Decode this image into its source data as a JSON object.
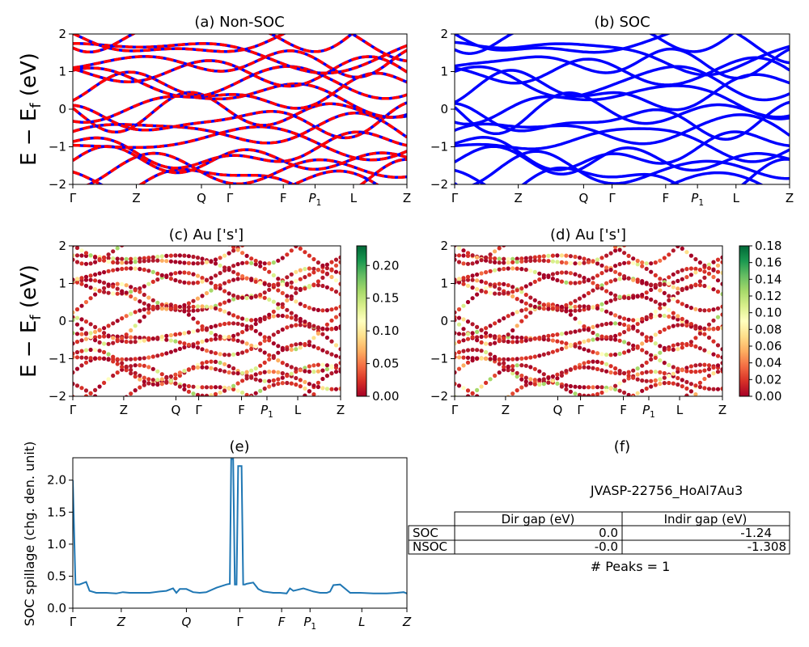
{
  "figure": {
    "row_label_top": "E − E",
    "row_label_sub": "f",
    "row_label_unit": " (eV)"
  },
  "chart_data": [
    {
      "id": "a",
      "type": "line",
      "title": "(a) Non-SOC",
      "ylim": [
        -2,
        2
      ],
      "yticks": [
        -2,
        -1,
        0,
        1,
        2
      ],
      "kpath_ticks": [
        "Γ",
        "Z",
        "Q",
        "Γ",
        "F",
        "P1",
        "L",
        "Z"
      ],
      "kpath_positions": [
        0.0,
        0.19,
        0.385,
        0.47,
        0.63,
        0.725,
        0.84,
        1.0
      ],
      "series_colors": [
        "#ff0000",
        "#0000ff"
      ],
      "line_style": "red with blue dashes (spin up/down overlap)"
    },
    {
      "id": "b",
      "type": "line",
      "title": "(b) SOC",
      "ylim": [
        -2,
        2
      ],
      "yticks": [
        -2,
        -1,
        0,
        1,
        2
      ],
      "kpath_ticks": [
        "Γ",
        "Z",
        "Q",
        "Γ",
        "F",
        "P1",
        "L",
        "Z"
      ],
      "kpath_positions": [
        0.0,
        0.19,
        0.385,
        0.47,
        0.63,
        0.725,
        0.84,
        1.0
      ],
      "series_colors": [
        "#0000ff"
      ]
    },
    {
      "id": "c",
      "type": "scatter",
      "title": "(c)  Au ['s']",
      "ylim": [
        -2,
        2
      ],
      "yticks": [
        -2,
        -1,
        0,
        1,
        2
      ],
      "kpath_ticks": [
        "Γ",
        "Z",
        "Q",
        "Γ",
        "F",
        "P1",
        "L",
        "Z"
      ],
      "kpath_positions": [
        0.0,
        0.19,
        0.385,
        0.47,
        0.63,
        0.725,
        0.84,
        1.0
      ],
      "colorbar": {
        "range": [
          0.0,
          0.23
        ],
        "ticks": [
          "0.00",
          "0.05",
          "0.10",
          "0.15",
          "0.20"
        ],
        "colormap": "RdYlGn"
      }
    },
    {
      "id": "d",
      "type": "scatter",
      "title": "(d) Au ['s']",
      "ylim": [
        -2,
        2
      ],
      "yticks": [
        -2,
        -1,
        0,
        1,
        2
      ],
      "kpath_ticks": [
        "Γ",
        "Z",
        "Q",
        "Γ",
        "F",
        "P1",
        "L",
        "Z"
      ],
      "kpath_positions": [
        0.0,
        0.19,
        0.385,
        0.47,
        0.63,
        0.725,
        0.84,
        1.0
      ],
      "colorbar": {
        "range": [
          0.0,
          0.18
        ],
        "ticks": [
          "0.00",
          "0.02",
          "0.04",
          "0.06",
          "0.08",
          "0.10",
          "0.12",
          "0.14",
          "0.16",
          "0.18"
        ],
        "colormap": "RdYlGn"
      }
    },
    {
      "id": "e",
      "type": "line",
      "title": "(e)",
      "ylabel": "SOC spillage (chg. den. unit)",
      "ylim": [
        0,
        2.35
      ],
      "yticks": [
        "0.0",
        "0.5",
        "1.0",
        "1.5",
        "2.0"
      ],
      "kpath_ticks": [
        "Γ",
        "Z",
        "Q",
        "Γ",
        "F",
        "P1",
        "L",
        "Z"
      ],
      "kpath_positions": [
        0.0,
        0.145,
        0.34,
        0.5,
        0.625,
        0.71,
        0.865,
        1.0
      ],
      "x": [
        0.0,
        0.008,
        0.02,
        0.04,
        0.05,
        0.07,
        0.1,
        0.13,
        0.15,
        0.17,
        0.2,
        0.23,
        0.26,
        0.28,
        0.3,
        0.31,
        0.32,
        0.34,
        0.36,
        0.38,
        0.4,
        0.43,
        0.46,
        0.47,
        0.474,
        0.48,
        0.485,
        0.49,
        0.495,
        0.505,
        0.51,
        0.515,
        0.52,
        0.54,
        0.555,
        0.57,
        0.6,
        0.62,
        0.64,
        0.65,
        0.66,
        0.69,
        0.72,
        0.74,
        0.76,
        0.77,
        0.78,
        0.8,
        0.83,
        0.86,
        0.9,
        0.94,
        0.97,
        0.99,
        1.0
      ],
      "values": [
        2.0,
        0.37,
        0.37,
        0.41,
        0.27,
        0.24,
        0.24,
        0.23,
        0.25,
        0.24,
        0.24,
        0.24,
        0.26,
        0.27,
        0.31,
        0.24,
        0.3,
        0.3,
        0.25,
        0.24,
        0.25,
        0.32,
        0.37,
        0.38,
        2.33,
        2.33,
        0.37,
        0.37,
        2.22,
        2.22,
        0.37,
        0.37,
        0.38,
        0.4,
        0.3,
        0.26,
        0.24,
        0.24,
        0.23,
        0.31,
        0.27,
        0.31,
        0.26,
        0.24,
        0.24,
        0.26,
        0.36,
        0.37,
        0.24,
        0.24,
        0.23,
        0.23,
        0.24,
        0.25,
        0.23
      ],
      "color": "#1f77b4"
    }
  ],
  "panel_f": {
    "title": "(f)",
    "material": "JVASP-22756_HoAl7Au3",
    "table": {
      "headers": [
        "Dir gap (eV)",
        "Indir gap (eV)"
      ],
      "rows": [
        {
          "label": "SOC",
          "dir": "0.0",
          "indir": "-1.24"
        },
        {
          "label": "NSOC",
          "dir": "-0.0",
          "indir": "-1.308"
        }
      ]
    },
    "peaks": "# Peaks = 1"
  }
}
